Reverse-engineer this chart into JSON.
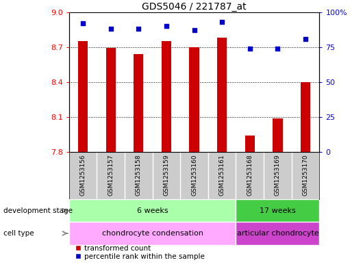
{
  "title": "GDS5046 / 221787_at",
  "samples": [
    "GSM1253156",
    "GSM1253157",
    "GSM1253158",
    "GSM1253159",
    "GSM1253160",
    "GSM1253161",
    "GSM1253168",
    "GSM1253169",
    "GSM1253170"
  ],
  "red_values": [
    8.75,
    8.69,
    8.64,
    8.75,
    8.7,
    8.78,
    7.94,
    8.09,
    8.4
  ],
  "blue_values": [
    92,
    88,
    88,
    90,
    87,
    93,
    74,
    74,
    81
  ],
  "ylim_left": [
    7.8,
    9.0
  ],
  "ylim_right": [
    0,
    100
  ],
  "yticks_left": [
    7.8,
    8.1,
    8.4,
    8.7,
    9.0
  ],
  "yticks_right": [
    0,
    25,
    50,
    75,
    100
  ],
  "ytick_labels_right": [
    "0",
    "25",
    "50",
    "75",
    "100%"
  ],
  "bar_color": "#cc0000",
  "dot_color": "#0000cc",
  "dev_stage_labels": [
    "6 weeks",
    "17 weeks"
  ],
  "dev_stage_group1_count": 6,
  "dev_stage_group2_count": 3,
  "dev_stage_colors": [
    "#aaffaa",
    "#44cc44"
  ],
  "cell_type_labels": [
    "chondrocyte condensation",
    "articular chondrocyte"
  ],
  "cell_type_colors": [
    "#ffaaff",
    "#cc44cc"
  ],
  "bar_bottom": 7.8,
  "bar_width": 0.35,
  "xlim": [
    -0.5,
    8.5
  ],
  "sample_bg_color": "#cccccc",
  "plot_bg_color": "#ffffff",
  "legend_labels": [
    "transformed count",
    "percentile rank within the sample"
  ]
}
